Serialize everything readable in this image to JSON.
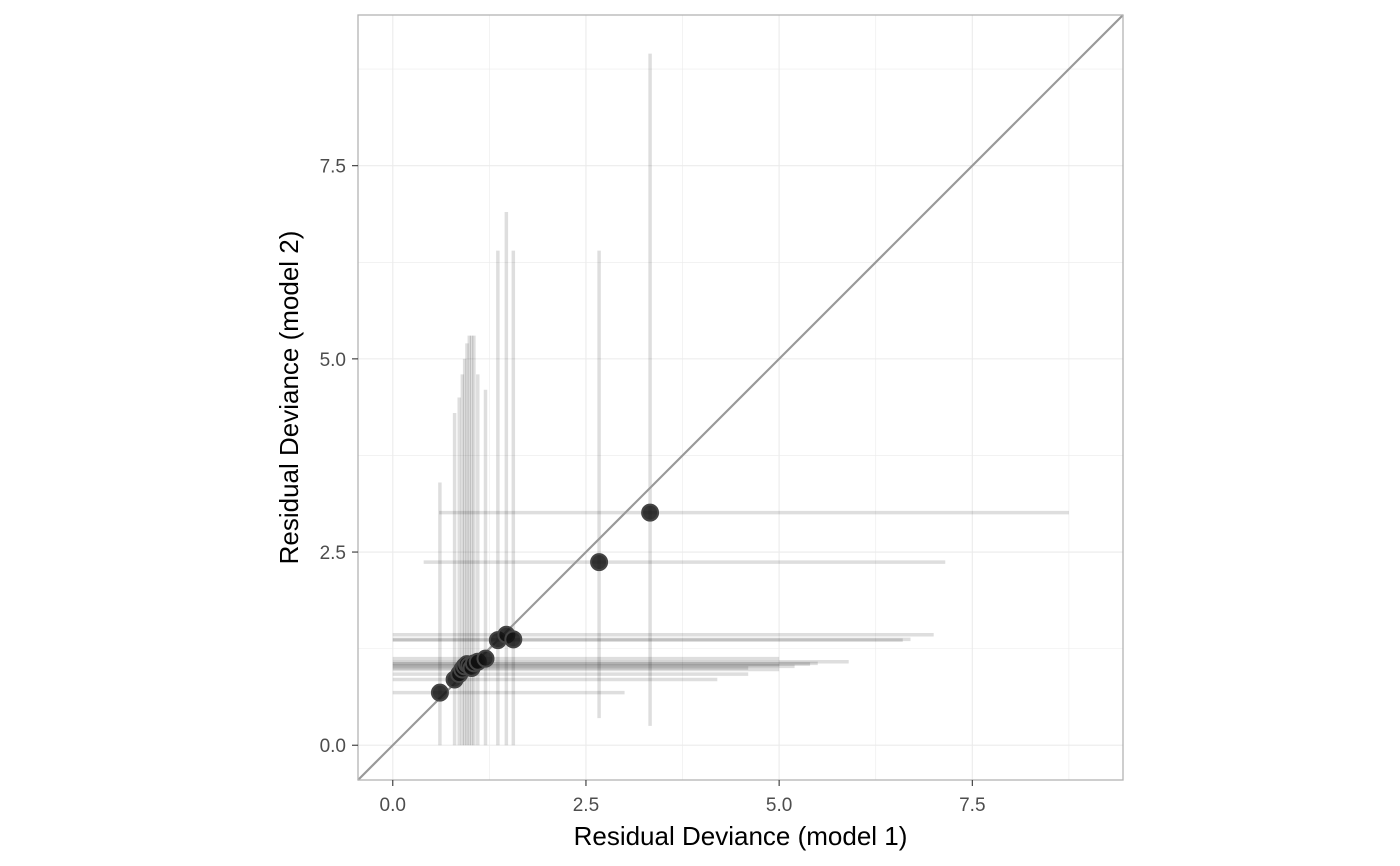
{
  "chart_data": {
    "type": "scatter",
    "title": "",
    "xlabel": "Residual Deviance (model 1)",
    "ylabel": "Residual Deviance (model 2)",
    "xlim": [
      -0.45,
      9.45
    ],
    "ylim": [
      -0.45,
      9.45
    ],
    "xticks": [
      0.0,
      2.5,
      5.0,
      7.5
    ],
    "yticks": [
      0.0,
      2.5,
      5.0,
      7.5
    ],
    "xtick_labels": [
      "0.0",
      "2.5",
      "5.0",
      "7.5"
    ],
    "ytick_labels": [
      "0.0",
      "2.5",
      "5.0",
      "7.5"
    ],
    "grid": true,
    "reference_line": "y = x",
    "points": [
      {
        "x": 0.61,
        "y": 0.68,
        "xlo": 0.0,
        "xhi": 3.0,
        "ylo": 0.0,
        "yhi": 3.4
      },
      {
        "x": 0.8,
        "y": 0.85,
        "xlo": 0.0,
        "xhi": 4.2,
        "ylo": 0.0,
        "yhi": 4.3
      },
      {
        "x": 0.86,
        "y": 0.92,
        "xlo": 0.0,
        "xhi": 4.6,
        "ylo": 0.0,
        "yhi": 4.5
      },
      {
        "x": 0.9,
        "y": 0.98,
        "xlo": 0.0,
        "xhi": 5.0,
        "ylo": 0.0,
        "yhi": 4.8
      },
      {
        "x": 0.93,
        "y": 1.02,
        "xlo": 0.0,
        "xhi": 5.2,
        "ylo": 0.0,
        "yhi": 5.0
      },
      {
        "x": 0.96,
        "y": 1.05,
        "xlo": 0.0,
        "xhi": 5.4,
        "ylo": 0.0,
        "yhi": 5.2
      },
      {
        "x": 0.99,
        "y": 1.03,
        "xlo": 0.0,
        "xhi": 5.0,
        "ylo": 0.0,
        "yhi": 5.3
      },
      {
        "x": 1.02,
        "y": 1.0,
        "xlo": 0.0,
        "xhi": 4.6,
        "ylo": 0.0,
        "yhi": 5.3
      },
      {
        "x": 1.05,
        "y": 1.06,
        "xlo": 0.0,
        "xhi": 5.5,
        "ylo": 0.0,
        "yhi": 5.3
      },
      {
        "x": 1.1,
        "y": 1.08,
        "xlo": 0.0,
        "xhi": 5.9,
        "ylo": 0.0,
        "yhi": 4.8
      },
      {
        "x": 1.2,
        "y": 1.12,
        "xlo": 0.0,
        "xhi": 5.0,
        "ylo": 0.0,
        "yhi": 4.6
      },
      {
        "x": 1.36,
        "y": 1.36,
        "xlo": 0.0,
        "xhi": 6.6,
        "ylo": 0.0,
        "yhi": 6.4
      },
      {
        "x": 1.47,
        "y": 1.43,
        "xlo": 0.0,
        "xhi": 7.0,
        "ylo": 0.0,
        "yhi": 6.9
      },
      {
        "x": 1.56,
        "y": 1.37,
        "xlo": 0.0,
        "xhi": 6.7,
        "ylo": 0.0,
        "yhi": 6.4
      },
      {
        "x": 2.67,
        "y": 2.37,
        "xlo": 0.4,
        "xhi": 7.15,
        "ylo": 0.35,
        "yhi": 6.4
      },
      {
        "x": 3.33,
        "y": 3.01,
        "xlo": 0.6,
        "xhi": 8.75,
        "ylo": 0.25,
        "yhi": 8.95
      }
    ]
  }
}
